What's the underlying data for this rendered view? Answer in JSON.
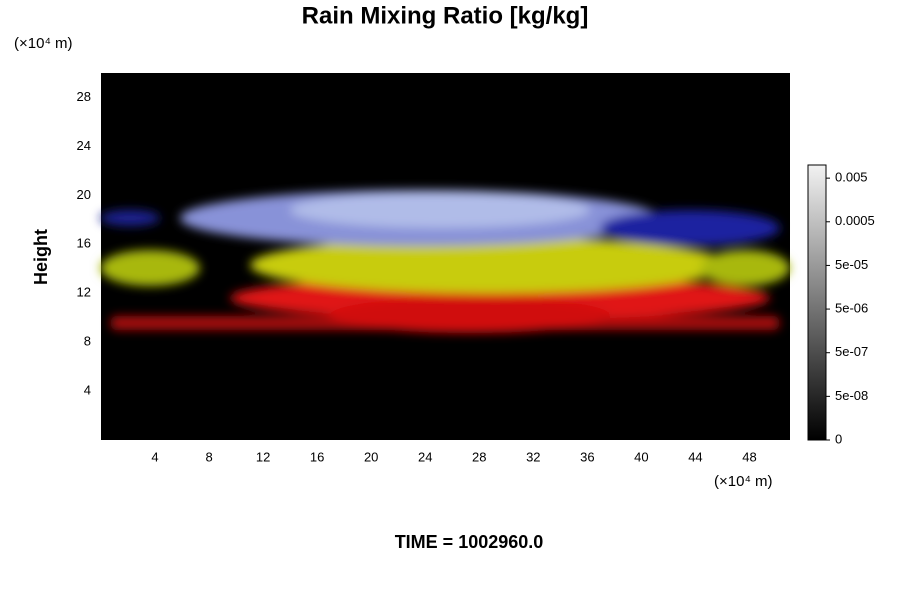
{
  "chart_data": {
    "type": "volume",
    "title": "Rain Mixing Ratio [kg/kg]",
    "y_label": "Height",
    "y_unit": "(×10⁴ m)",
    "x_unit": "(×10⁴ m)",
    "footer": "TIME = 1002960.0",
    "xlim": [
      0,
      51
    ],
    "xticks": [
      4,
      8,
      12,
      16,
      20,
      24,
      28,
      32,
      36,
      40,
      44,
      48
    ],
    "ylim": [
      0,
      30
    ],
    "yticks": [
      4,
      8,
      12,
      16,
      20,
      24,
      28
    ],
    "colorbar": {
      "scale": "log",
      "clim": [
        5e-09,
        0.01
      ],
      "ticks": [
        0,
        {
          "value": 5e-08,
          "label": "5e-08"
        },
        {
          "value": 5e-07,
          "label": "5e-07"
        },
        {
          "value": 5e-06,
          "label": "5e-06"
        },
        {
          "value": 5e-05,
          "label": "5e-05"
        },
        0.0005,
        0.005
      ]
    }
  }
}
